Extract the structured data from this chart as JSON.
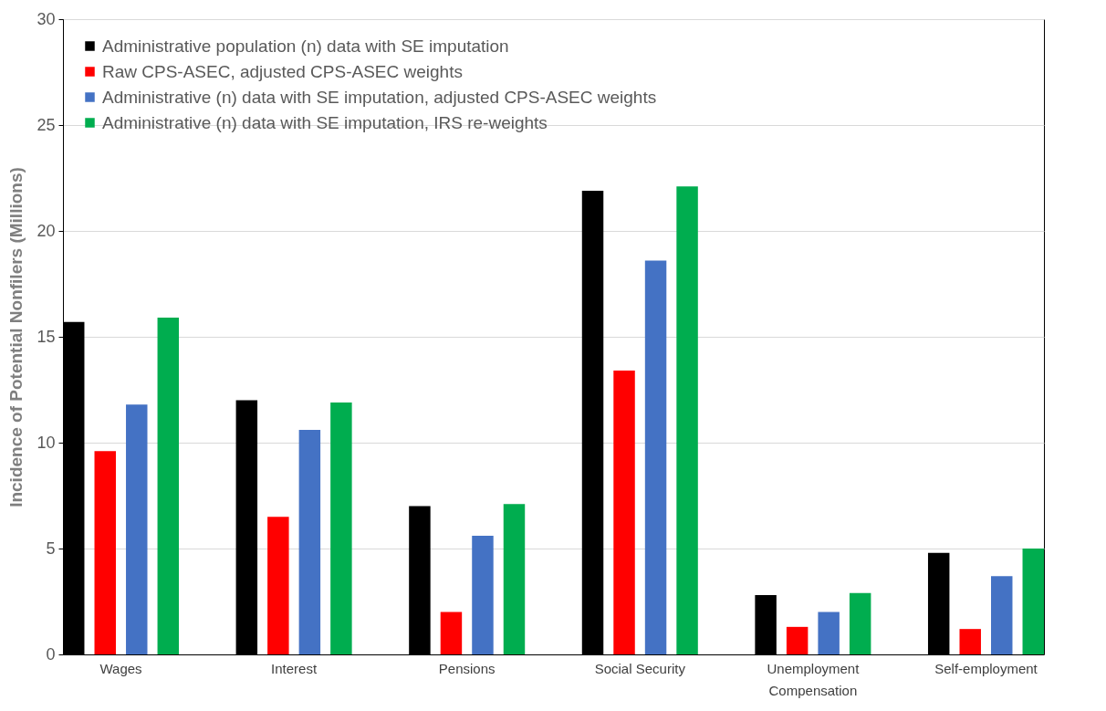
{
  "chart_data": {
    "type": "bar",
    "ylabel": "Incidence of Potential Nonfilers (Millions)",
    "categories": [
      "Wages",
      "Interest",
      "Pensions",
      "Social Security",
      "Unemployment Compensation",
      "Self-employment"
    ],
    "series": [
      {
        "name": "Administrative population (n) data with SE imputation",
        "color": "#000000",
        "values": [
          15.7,
          12.0,
          7.0,
          21.9,
          2.8,
          4.8
        ]
      },
      {
        "name": "Raw CPS-ASEC, adjusted CPS-ASEC weights",
        "color": "#ff0000",
        "values": [
          9.6,
          6.5,
          2.0,
          13.4,
          1.3,
          1.2
        ]
      },
      {
        "name": "Administrative (n) data with SE imputation, adjusted CPS-ASEC weights",
        "color": "#4472c4",
        "values": [
          11.8,
          10.6,
          5.6,
          18.6,
          2.0,
          3.7
        ]
      },
      {
        "name": "Administrative (n) data with SE imputation, IRS re-weights",
        "color": "#00ad4f",
        "values": [
          15.9,
          11.9,
          7.1,
          22.1,
          2.9,
          5.0
        ]
      }
    ],
    "ylim": [
      0,
      30
    ],
    "yticks": [
      0,
      5,
      10,
      15,
      20,
      25,
      30
    ],
    "grid": "y",
    "legend": "top left"
  }
}
